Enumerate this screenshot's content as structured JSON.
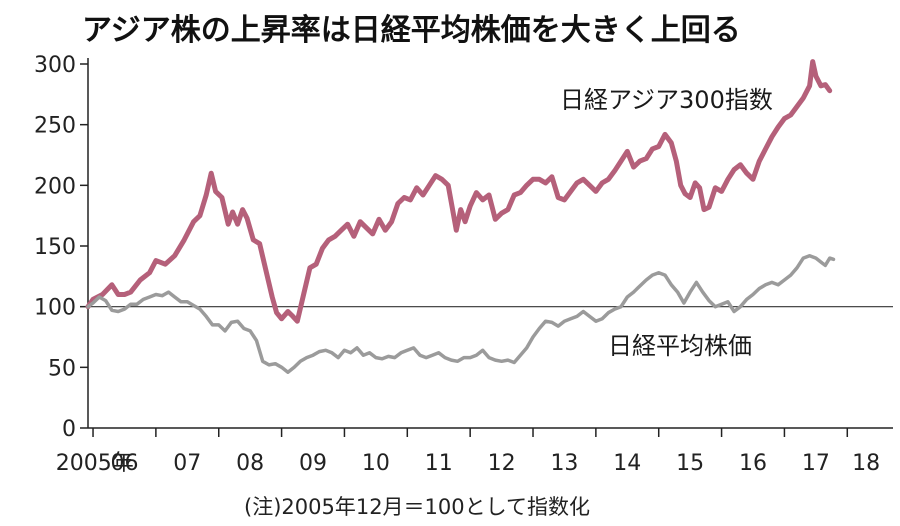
{
  "chart_data": {
    "type": "line",
    "title": "アジア株の上昇率は日経平均株価を大きく上回る",
    "note": "(注)2005年12月＝100として指数化",
    "xlabel": "",
    "ylabel": "",
    "ylim": [
      0,
      300
    ],
    "xlim": [
      2005.92,
      2018.6
    ],
    "y_ticks": [
      0,
      50,
      100,
      150,
      200,
      250,
      300
    ],
    "x_ticks": [
      {
        "x": 2005.9,
        "label": "2005年"
      },
      {
        "x": 2006.5,
        "label": "06"
      },
      {
        "x": 2007.5,
        "label": "07"
      },
      {
        "x": 2008.5,
        "label": "08"
      },
      {
        "x": 2009.5,
        "label": "09"
      },
      {
        "x": 2010.5,
        "label": "10"
      },
      {
        "x": 2011.5,
        "label": "11"
      },
      {
        "x": 2012.5,
        "label": "12"
      },
      {
        "x": 2013.5,
        "label": "13"
      },
      {
        "x": 2014.5,
        "label": "14"
      },
      {
        "x": 2015.5,
        "label": "15"
      },
      {
        "x": 2016.5,
        "label": "16"
      },
      {
        "x": 2017.5,
        "label": "17"
      },
      {
        "x": 2018.3,
        "label": "18"
      }
    ],
    "reference_line": 100,
    "series": [
      {
        "name": "日経アジア300指数",
        "color": "#b5607a",
        "points": [
          [
            2005.92,
            100
          ],
          [
            2006.0,
            106
          ],
          [
            2006.15,
            110
          ],
          [
            2006.3,
            118
          ],
          [
            2006.4,
            110
          ],
          [
            2006.5,
            110
          ],
          [
            2006.6,
            112
          ],
          [
            2006.75,
            122
          ],
          [
            2006.9,
            128
          ],
          [
            2007.0,
            138
          ],
          [
            2007.15,
            135
          ],
          [
            2007.3,
            142
          ],
          [
            2007.45,
            155
          ],
          [
            2007.6,
            170
          ],
          [
            2007.7,
            175
          ],
          [
            2007.8,
            192
          ],
          [
            2007.88,
            210
          ],
          [
            2007.95,
            195
          ],
          [
            2008.05,
            190
          ],
          [
            2008.15,
            168
          ],
          [
            2008.22,
            178
          ],
          [
            2008.3,
            168
          ],
          [
            2008.38,
            180
          ],
          [
            2008.45,
            173
          ],
          [
            2008.55,
            155
          ],
          [
            2008.65,
            152
          ],
          [
            2008.75,
            130
          ],
          [
            2008.85,
            108
          ],
          [
            2008.92,
            95
          ],
          [
            2009.0,
            90
          ],
          [
            2009.1,
            96
          ],
          [
            2009.18,
            92
          ],
          [
            2009.25,
            88
          ],
          [
            2009.35,
            110
          ],
          [
            2009.45,
            132
          ],
          [
            2009.55,
            135
          ],
          [
            2009.65,
            148
          ],
          [
            2009.75,
            155
          ],
          [
            2009.85,
            158
          ],
          [
            2009.95,
            163
          ],
          [
            2010.05,
            168
          ],
          [
            2010.15,
            158
          ],
          [
            2010.25,
            170
          ],
          [
            2010.35,
            165
          ],
          [
            2010.45,
            160
          ],
          [
            2010.55,
            172
          ],
          [
            2010.65,
            163
          ],
          [
            2010.75,
            170
          ],
          [
            2010.85,
            185
          ],
          [
            2010.95,
            190
          ],
          [
            2011.05,
            188
          ],
          [
            2011.15,
            198
          ],
          [
            2011.25,
            192
          ],
          [
            2011.35,
            200
          ],
          [
            2011.45,
            208
          ],
          [
            2011.55,
            205
          ],
          [
            2011.65,
            200
          ],
          [
            2011.72,
            180
          ],
          [
            2011.78,
            163
          ],
          [
            2011.85,
            180
          ],
          [
            2011.92,
            170
          ],
          [
            2012.0,
            183
          ],
          [
            2012.1,
            194
          ],
          [
            2012.2,
            188
          ],
          [
            2012.3,
            192
          ],
          [
            2012.4,
            172
          ],
          [
            2012.5,
            177
          ],
          [
            2012.6,
            180
          ],
          [
            2012.7,
            192
          ],
          [
            2012.8,
            194
          ],
          [
            2012.9,
            200
          ],
          [
            2013.0,
            205
          ],
          [
            2013.1,
            205
          ],
          [
            2013.2,
            202
          ],
          [
            2013.3,
            207
          ],
          [
            2013.4,
            190
          ],
          [
            2013.5,
            188
          ],
          [
            2013.6,
            195
          ],
          [
            2013.7,
            202
          ],
          [
            2013.8,
            205
          ],
          [
            2013.9,
            200
          ],
          [
            2014.0,
            195
          ],
          [
            2014.1,
            202
          ],
          [
            2014.2,
            205
          ],
          [
            2014.3,
            212
          ],
          [
            2014.4,
            220
          ],
          [
            2014.5,
            228
          ],
          [
            2014.6,
            215
          ],
          [
            2014.7,
            220
          ],
          [
            2014.8,
            222
          ],
          [
            2014.9,
            230
          ],
          [
            2015.0,
            232
          ],
          [
            2015.1,
            242
          ],
          [
            2015.2,
            235
          ],
          [
            2015.28,
            220
          ],
          [
            2015.35,
            200
          ],
          [
            2015.42,
            193
          ],
          [
            2015.5,
            190
          ],
          [
            2015.58,
            202
          ],
          [
            2015.65,
            198
          ],
          [
            2015.72,
            180
          ],
          [
            2015.8,
            182
          ],
          [
            2015.9,
            198
          ],
          [
            2016.0,
            195
          ],
          [
            2016.1,
            205
          ],
          [
            2016.2,
            213
          ],
          [
            2016.3,
            217
          ],
          [
            2016.4,
            210
          ],
          [
            2016.5,
            205
          ],
          [
            2016.6,
            220
          ],
          [
            2016.7,
            230
          ],
          [
            2016.8,
            240
          ],
          [
            2016.9,
            248
          ],
          [
            2017.0,
            255
          ],
          [
            2017.1,
            258
          ],
          [
            2017.2,
            265
          ],
          [
            2017.3,
            272
          ],
          [
            2017.4,
            282
          ],
          [
            2017.45,
            302
          ],
          [
            2017.5,
            290
          ],
          [
            2017.58,
            282
          ],
          [
            2017.65,
            283
          ],
          [
            2017.72,
            278
          ]
        ]
      },
      {
        "name": "日経平均株価",
        "color": "#9b9b9b",
        "points": [
          [
            2005.92,
            100
          ],
          [
            2006.0,
            103
          ],
          [
            2006.1,
            108
          ],
          [
            2006.2,
            105
          ],
          [
            2006.3,
            97
          ],
          [
            2006.4,
            96
          ],
          [
            2006.5,
            98
          ],
          [
            2006.6,
            102
          ],
          [
            2006.7,
            102
          ],
          [
            2006.8,
            106
          ],
          [
            2006.9,
            108
          ],
          [
            2007.0,
            110
          ],
          [
            2007.1,
            109
          ],
          [
            2007.2,
            112
          ],
          [
            2007.3,
            108
          ],
          [
            2007.4,
            104
          ],
          [
            2007.5,
            104
          ],
          [
            2007.6,
            101
          ],
          [
            2007.7,
            98
          ],
          [
            2007.8,
            92
          ],
          [
            2007.9,
            85
          ],
          [
            2008.0,
            85
          ],
          [
            2008.1,
            80
          ],
          [
            2008.2,
            87
          ],
          [
            2008.3,
            88
          ],
          [
            2008.4,
            82
          ],
          [
            2008.5,
            80
          ],
          [
            2008.6,
            72
          ],
          [
            2008.7,
            55
          ],
          [
            2008.8,
            52
          ],
          [
            2008.9,
            53
          ],
          [
            2009.0,
            50
          ],
          [
            2009.1,
            46
          ],
          [
            2009.2,
            50
          ],
          [
            2009.3,
            55
          ],
          [
            2009.4,
            58
          ],
          [
            2009.5,
            60
          ],
          [
            2009.6,
            63
          ],
          [
            2009.7,
            64
          ],
          [
            2009.8,
            62
          ],
          [
            2009.9,
            58
          ],
          [
            2010.0,
            64
          ],
          [
            2010.1,
            62
          ],
          [
            2010.2,
            66
          ],
          [
            2010.3,
            60
          ],
          [
            2010.4,
            62
          ],
          [
            2010.5,
            58
          ],
          [
            2010.6,
            57
          ],
          [
            2010.7,
            59
          ],
          [
            2010.8,
            58
          ],
          [
            2010.9,
            62
          ],
          [
            2011.0,
            64
          ],
          [
            2011.1,
            66
          ],
          [
            2011.2,
            60
          ],
          [
            2011.3,
            58
          ],
          [
            2011.4,
            60
          ],
          [
            2011.5,
            62
          ],
          [
            2011.6,
            58
          ],
          [
            2011.7,
            56
          ],
          [
            2011.8,
            55
          ],
          [
            2011.9,
            58
          ],
          [
            2012.0,
            58
          ],
          [
            2012.1,
            60
          ],
          [
            2012.2,
            64
          ],
          [
            2012.3,
            58
          ],
          [
            2012.4,
            56
          ],
          [
            2012.5,
            55
          ],
          [
            2012.6,
            56
          ],
          [
            2012.7,
            54
          ],
          [
            2012.8,
            60
          ],
          [
            2012.9,
            66
          ],
          [
            2013.0,
            75
          ],
          [
            2013.1,
            82
          ],
          [
            2013.2,
            88
          ],
          [
            2013.3,
            87
          ],
          [
            2013.4,
            84
          ],
          [
            2013.5,
            88
          ],
          [
            2013.6,
            90
          ],
          [
            2013.7,
            92
          ],
          [
            2013.8,
            96
          ],
          [
            2013.9,
            92
          ],
          [
            2014.0,
            88
          ],
          [
            2014.1,
            90
          ],
          [
            2014.2,
            95
          ],
          [
            2014.3,
            98
          ],
          [
            2014.4,
            100
          ],
          [
            2014.5,
            108
          ],
          [
            2014.6,
            112
          ],
          [
            2014.7,
            117
          ],
          [
            2014.8,
            122
          ],
          [
            2014.9,
            126
          ],
          [
            2015.0,
            128
          ],
          [
            2015.1,
            126
          ],
          [
            2015.2,
            118
          ],
          [
            2015.3,
            112
          ],
          [
            2015.4,
            103
          ],
          [
            2015.5,
            112
          ],
          [
            2015.6,
            120
          ],
          [
            2015.7,
            112
          ],
          [
            2015.8,
            105
          ],
          [
            2015.9,
            100
          ],
          [
            2016.0,
            102
          ],
          [
            2016.1,
            104
          ],
          [
            2016.2,
            96
          ],
          [
            2016.3,
            100
          ],
          [
            2016.4,
            106
          ],
          [
            2016.5,
            110
          ],
          [
            2016.6,
            115
          ],
          [
            2016.7,
            118
          ],
          [
            2016.8,
            120
          ],
          [
            2016.9,
            118
          ],
          [
            2017.0,
            122
          ],
          [
            2017.1,
            126
          ],
          [
            2017.2,
            132
          ],
          [
            2017.3,
            140
          ],
          [
            2017.4,
            142
          ],
          [
            2017.5,
            140
          ],
          [
            2017.6,
            136
          ],
          [
            2017.65,
            134
          ],
          [
            2017.72,
            140
          ],
          [
            2017.78,
            139
          ]
        ]
      }
    ]
  }
}
